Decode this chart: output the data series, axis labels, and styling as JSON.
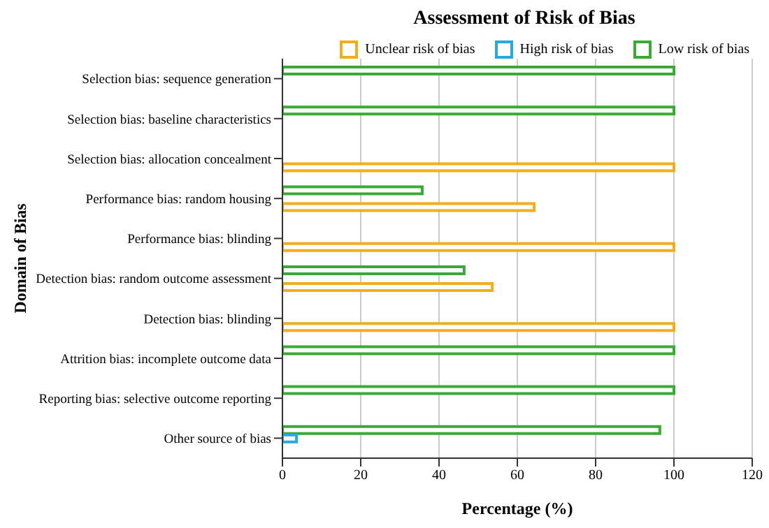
{
  "chart_data": {
    "type": "bar",
    "orientation": "horizontal",
    "title": "Assessment of Risk of Bias",
    "xlabel": "Percentage (%)",
    "ylabel": "Domain of Bias",
    "categories": [
      "Selection bias: sequence generation",
      "Selection bias: baseline characteristics",
      "Selection bias: allocation concealment",
      "Performance bias: random housing",
      "Performance bias: blinding",
      "Detection bias: random outcome assessment",
      "Detection bias: blinding",
      "Attrition bias: incomplete outcome data",
      "Reporting bias: selective outcome reporting",
      "Other source of bias"
    ],
    "series": [
      {
        "name": "Unclear risk of bias",
        "color": "#f0ae1f",
        "values": [
          0,
          0,
          100,
          64.3,
          100,
          53.6,
          100,
          0,
          0,
          0
        ]
      },
      {
        "name": "High risk of bias",
        "color": "#27a8df",
        "values": [
          0,
          0,
          0,
          0,
          0,
          0,
          0,
          0,
          0,
          3.6
        ]
      },
      {
        "name": "Low risk of bias",
        "color": "#3aa935",
        "values": [
          100,
          100,
          0,
          35.7,
          0,
          46.4,
          0,
          100,
          100,
          96.4
        ]
      }
    ],
    "xlim": [
      0,
      120
    ],
    "xticks": [
      0,
      20,
      40,
      60,
      80,
      100,
      120
    ],
    "grid": "x",
    "legend": "top right"
  }
}
